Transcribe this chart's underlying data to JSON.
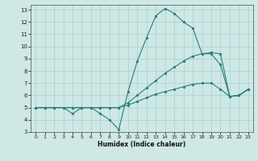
{
  "xlabel": "Humidex (Indice chaleur)",
  "bg_color": "#cde8e5",
  "grid_color": "#aacfcc",
  "line_color": "#2d7d78",
  "xlim": [
    -0.5,
    23.5
  ],
  "ylim": [
    3,
    13.4
  ],
  "xticks": [
    0,
    1,
    2,
    3,
    4,
    5,
    6,
    7,
    8,
    9,
    10,
    11,
    12,
    13,
    14,
    15,
    16,
    17,
    18,
    19,
    20,
    21,
    22,
    23
  ],
  "yticks": [
    3,
    4,
    5,
    6,
    7,
    8,
    9,
    10,
    11,
    12,
    13
  ],
  "line1_x": [
    0,
    1,
    2,
    3,
    4,
    5,
    6,
    7,
    8,
    9,
    10,
    11,
    12,
    13,
    14,
    15,
    16,
    17,
    18,
    19,
    20,
    21,
    22,
    23
  ],
  "line1_y": [
    5,
    5,
    5,
    5,
    4.5,
    5,
    5,
    4.5,
    4,
    3.2,
    6.3,
    8.8,
    10.7,
    12.5,
    13.1,
    12.7,
    12.0,
    11.5,
    9.4,
    9.4,
    8.5,
    5.9,
    6.0,
    6.5
  ],
  "line2_x": [
    0,
    1,
    2,
    3,
    4,
    5,
    6,
    7,
    8,
    9,
    10,
    11,
    12,
    13,
    14,
    15,
    16,
    17,
    18,
    19,
    20,
    21,
    22,
    23
  ],
  "line2_y": [
    5,
    5,
    5,
    5,
    5,
    5,
    5,
    5,
    5,
    5,
    5.4,
    6.0,
    6.6,
    7.2,
    7.8,
    8.3,
    8.8,
    9.2,
    9.4,
    9.5,
    9.4,
    5.9,
    6.0,
    6.5
  ],
  "line3_x": [
    0,
    1,
    2,
    3,
    4,
    5,
    6,
    7,
    8,
    9,
    10,
    11,
    12,
    13,
    14,
    15,
    16,
    17,
    18,
    19,
    20,
    21,
    22,
    23
  ],
  "line3_y": [
    5,
    5,
    5,
    5,
    5,
    5,
    5,
    5,
    5,
    5,
    5.2,
    5.5,
    5.8,
    6.1,
    6.3,
    6.5,
    6.7,
    6.9,
    7.0,
    7.0,
    6.5,
    5.9,
    6.0,
    6.5
  ]
}
